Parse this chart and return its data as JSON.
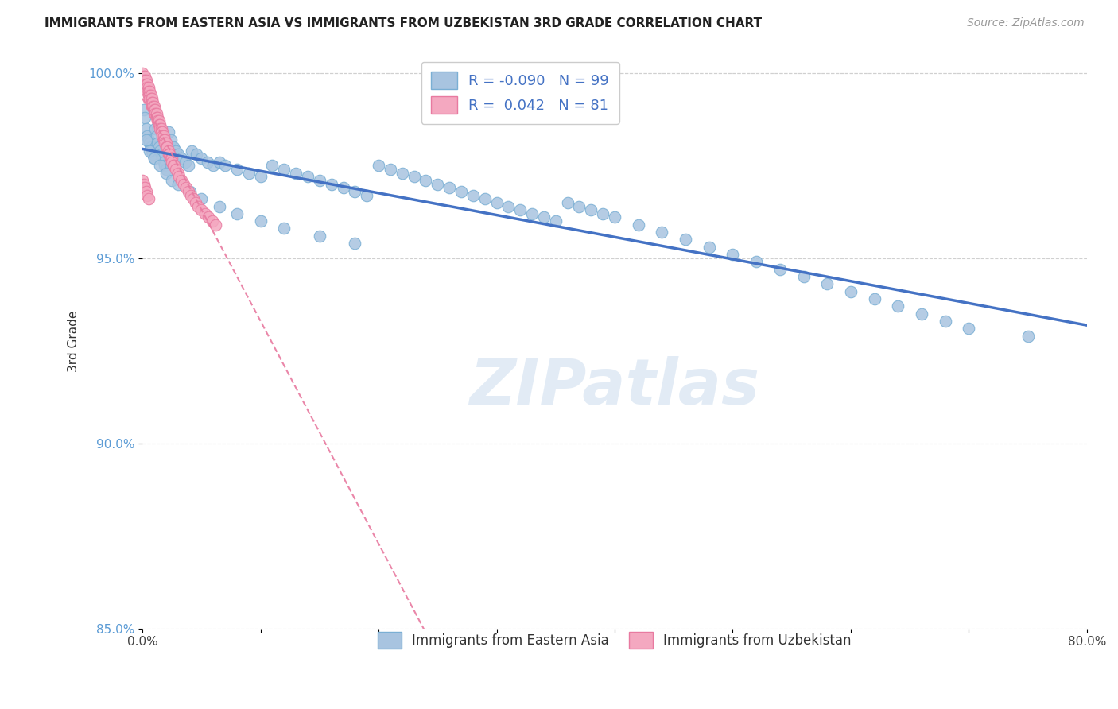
{
  "title": "IMMIGRANTS FROM EASTERN ASIA VS IMMIGRANTS FROM UZBEKISTAN 3RD GRADE CORRELATION CHART",
  "source": "Source: ZipAtlas.com",
  "ylabel": "3rd Grade",
  "xlim": [
    0.0,
    0.8
  ],
  "ylim": [
    0.869,
    1.005
  ],
  "yticks": [
    0.85,
    0.9,
    0.95,
    1.0
  ],
  "yticklabels": [
    "85.0%",
    "90.0%",
    "95.0%",
    "100.0%"
  ],
  "legend_r1": "-0.090",
  "legend_n1": "99",
  "legend_r2": " 0.042",
  "legend_n2": "81",
  "blue_color": "#a8c4e0",
  "blue_edge": "#7aafd4",
  "pink_color": "#f4a8c0",
  "pink_edge": "#e87aa0",
  "trend_blue": "#4472c4",
  "trend_pink": "#e87aa0",
  "watermark": "ZIPatlas",
  "scatter_blue_x": [
    0.001,
    0.002,
    0.003,
    0.004,
    0.005,
    0.006,
    0.007,
    0.008,
    0.009,
    0.01,
    0.011,
    0.012,
    0.013,
    0.014,
    0.015,
    0.016,
    0.017,
    0.018,
    0.019,
    0.02,
    0.022,
    0.024,
    0.026,
    0.028,
    0.03,
    0.033,
    0.036,
    0.039,
    0.042,
    0.046,
    0.05,
    0.055,
    0.06,
    0.065,
    0.07,
    0.08,
    0.09,
    0.1,
    0.11,
    0.12,
    0.13,
    0.14,
    0.15,
    0.16,
    0.17,
    0.18,
    0.19,
    0.2,
    0.21,
    0.22,
    0.23,
    0.24,
    0.25,
    0.26,
    0.27,
    0.28,
    0.29,
    0.3,
    0.31,
    0.32,
    0.33,
    0.34,
    0.35,
    0.36,
    0.37,
    0.38,
    0.39,
    0.4,
    0.42,
    0.44,
    0.46,
    0.48,
    0.5,
    0.52,
    0.54,
    0.56,
    0.58,
    0.6,
    0.62,
    0.64,
    0.66,
    0.68,
    0.7,
    0.003,
    0.006,
    0.01,
    0.015,
    0.02,
    0.025,
    0.03,
    0.04,
    0.05,
    0.065,
    0.08,
    0.1,
    0.12,
    0.15,
    0.18,
    0.75
  ],
  "scatter_blue_y": [
    0.99,
    0.988,
    0.985,
    0.983,
    0.982,
    0.981,
    0.98,
    0.979,
    0.978,
    0.977,
    0.985,
    0.983,
    0.981,
    0.98,
    0.979,
    0.978,
    0.977,
    0.976,
    0.975,
    0.974,
    0.984,
    0.982,
    0.98,
    0.979,
    0.978,
    0.977,
    0.976,
    0.975,
    0.979,
    0.978,
    0.977,
    0.976,
    0.975,
    0.976,
    0.975,
    0.974,
    0.973,
    0.972,
    0.975,
    0.974,
    0.973,
    0.972,
    0.971,
    0.97,
    0.969,
    0.968,
    0.967,
    0.975,
    0.974,
    0.973,
    0.972,
    0.971,
    0.97,
    0.969,
    0.968,
    0.967,
    0.966,
    0.965,
    0.964,
    0.963,
    0.962,
    0.961,
    0.96,
    0.965,
    0.964,
    0.963,
    0.962,
    0.961,
    0.959,
    0.957,
    0.955,
    0.953,
    0.951,
    0.949,
    0.947,
    0.945,
    0.943,
    0.941,
    0.939,
    0.937,
    0.935,
    0.933,
    0.931,
    0.982,
    0.979,
    0.977,
    0.975,
    0.973,
    0.971,
    0.97,
    0.968,
    0.966,
    0.964,
    0.962,
    0.96,
    0.958,
    0.956,
    0.954,
    0.929
  ],
  "scatter_pink_x": [
    0.0,
    0.001,
    0.001,
    0.001,
    0.002,
    0.002,
    0.002,
    0.003,
    0.003,
    0.003,
    0.004,
    0.004,
    0.004,
    0.005,
    0.005,
    0.005,
    0.006,
    0.006,
    0.006,
    0.007,
    0.007,
    0.007,
    0.008,
    0.008,
    0.008,
    0.009,
    0.009,
    0.01,
    0.01,
    0.01,
    0.011,
    0.011,
    0.012,
    0.012,
    0.013,
    0.013,
    0.014,
    0.014,
    0.015,
    0.015,
    0.016,
    0.016,
    0.017,
    0.017,
    0.018,
    0.018,
    0.019,
    0.019,
    0.02,
    0.02,
    0.021,
    0.022,
    0.022,
    0.023,
    0.024,
    0.025,
    0.025,
    0.026,
    0.027,
    0.028,
    0.03,
    0.031,
    0.033,
    0.035,
    0.037,
    0.039,
    0.041,
    0.043,
    0.045,
    0.047,
    0.05,
    0.053,
    0.056,
    0.059,
    0.062,
    0.0,
    0.001,
    0.002,
    0.003,
    0.004,
    0.005
  ],
  "scatter_pink_y": [
    1.0,
    0.999,
    0.998,
    0.997,
    0.999,
    0.998,
    0.997,
    0.998,
    0.997,
    0.996,
    0.997,
    0.996,
    0.995,
    0.996,
    0.995,
    0.994,
    0.995,
    0.994,
    0.993,
    0.994,
    0.993,
    0.992,
    0.993,
    0.992,
    0.991,
    0.992,
    0.991,
    0.991,
    0.99,
    0.989,
    0.99,
    0.989,
    0.989,
    0.988,
    0.988,
    0.987,
    0.987,
    0.986,
    0.986,
    0.985,
    0.985,
    0.984,
    0.984,
    0.983,
    0.983,
    0.982,
    0.982,
    0.981,
    0.981,
    0.98,
    0.98,
    0.979,
    0.978,
    0.978,
    0.977,
    0.977,
    0.976,
    0.975,
    0.975,
    0.974,
    0.973,
    0.972,
    0.971,
    0.97,
    0.969,
    0.968,
    0.967,
    0.966,
    0.965,
    0.964,
    0.963,
    0.962,
    0.961,
    0.96,
    0.959,
    0.971,
    0.97,
    0.969,
    0.968,
    0.967,
    0.966
  ]
}
